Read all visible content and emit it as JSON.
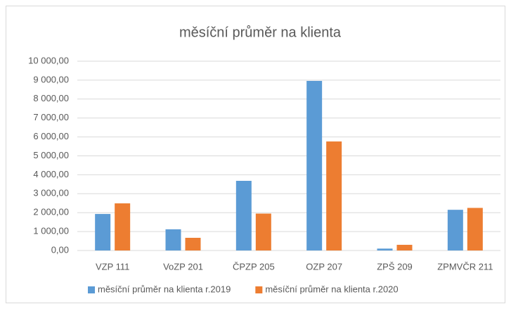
{
  "chart_data": {
    "type": "bar",
    "title": "měsíční průměr na klienta",
    "categories": [
      "VZP 111",
      "VoZP 201",
      "ČPZP 205",
      "OZP 207",
      "ZPŠ 209",
      "ZPMVČR 211"
    ],
    "series": [
      {
        "name": "měsíční průměr na klienta r.2019",
        "color": "#5b9bd5",
        "values": [
          1930,
          1120,
          3680,
          8960,
          100,
          2150
        ]
      },
      {
        "name": "měsíční průměr na klienta r.2020",
        "color": "#ed7d31",
        "values": [
          2490,
          670,
          1950,
          5760,
          300,
          2250
        ]
      }
    ],
    "ylim": [
      0,
      10000
    ],
    "yticks": [
      {
        "value": 0,
        "label": "0,00"
      },
      {
        "value": 1000,
        "label": "1 000,00"
      },
      {
        "value": 2000,
        "label": "2 000,00"
      },
      {
        "value": 3000,
        "label": "3 000,00"
      },
      {
        "value": 4000,
        "label": "4 000,00"
      },
      {
        "value": 5000,
        "label": "5 000,00"
      },
      {
        "value": 6000,
        "label": "6 000,00"
      },
      {
        "value": 7000,
        "label": "7 000,00"
      },
      {
        "value": 8000,
        "label": "8 000,00"
      },
      {
        "value": 9000,
        "label": "9 000,00"
      },
      {
        "value": 10000,
        "label": "10 000,00"
      }
    ],
    "grid": true,
    "legend": "bottom"
  }
}
